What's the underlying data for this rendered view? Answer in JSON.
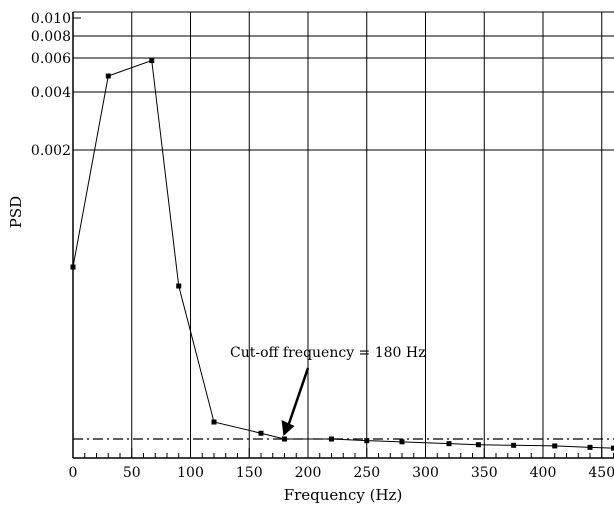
{
  "chart_data": {
    "type": "line",
    "title": "",
    "xlabel": "Frequency (Hz)",
    "ylabel": "PSD",
    "xlim": [
      0,
      460
    ],
    "ylim": [
      0,
      0.01
    ],
    "y_scale": "log-like (compressed low range)",
    "grid": true,
    "legend": "none",
    "x_ticks": [
      0,
      50,
      100,
      150,
      200,
      250,
      300,
      350,
      400,
      450
    ],
    "y_ticks": [
      "0.002",
      "0.004",
      "0.006",
      "0.008",
      "0.010"
    ],
    "y_tick_values": [
      0.002,
      0.004,
      0.006,
      0.008,
      0.01
    ],
    "series": [
      {
        "points": [
          {
            "x": 0,
            "y": 0.0006
          },
          {
            "x": 30,
            "y": 0.0047
          },
          {
            "x": 67,
            "y": 0.0058
          },
          {
            "x": 90,
            "y": 0.0005
          },
          {
            "x": 120,
            "y": 7e-05
          },
          {
            "x": 160,
            "y": 4e-05
          },
          {
            "x": 180,
            "y": 3e-05
          },
          {
            "x": 220,
            "y": 3e-05
          },
          {
            "x": 250,
            "y": 2.5e-05
          },
          {
            "x": 280,
            "y": 2.2e-05
          },
          {
            "x": 320,
            "y": 1.8e-05
          },
          {
            "x": 345,
            "y": 1.6e-05
          },
          {
            "x": 375,
            "y": 1.5e-05
          },
          {
            "x": 410,
            "y": 1.4e-05
          },
          {
            "x": 440,
            "y": 1.2e-05
          },
          {
            "x": 460,
            "y": 1.1e-05
          }
        ]
      }
    ],
    "reference_line": {
      "y": 3e-05,
      "style": "dash-dot"
    },
    "annotation": {
      "text": "Cut-off frequency = 180 Hz",
      "x": 180,
      "y": 3e-05
    }
  }
}
